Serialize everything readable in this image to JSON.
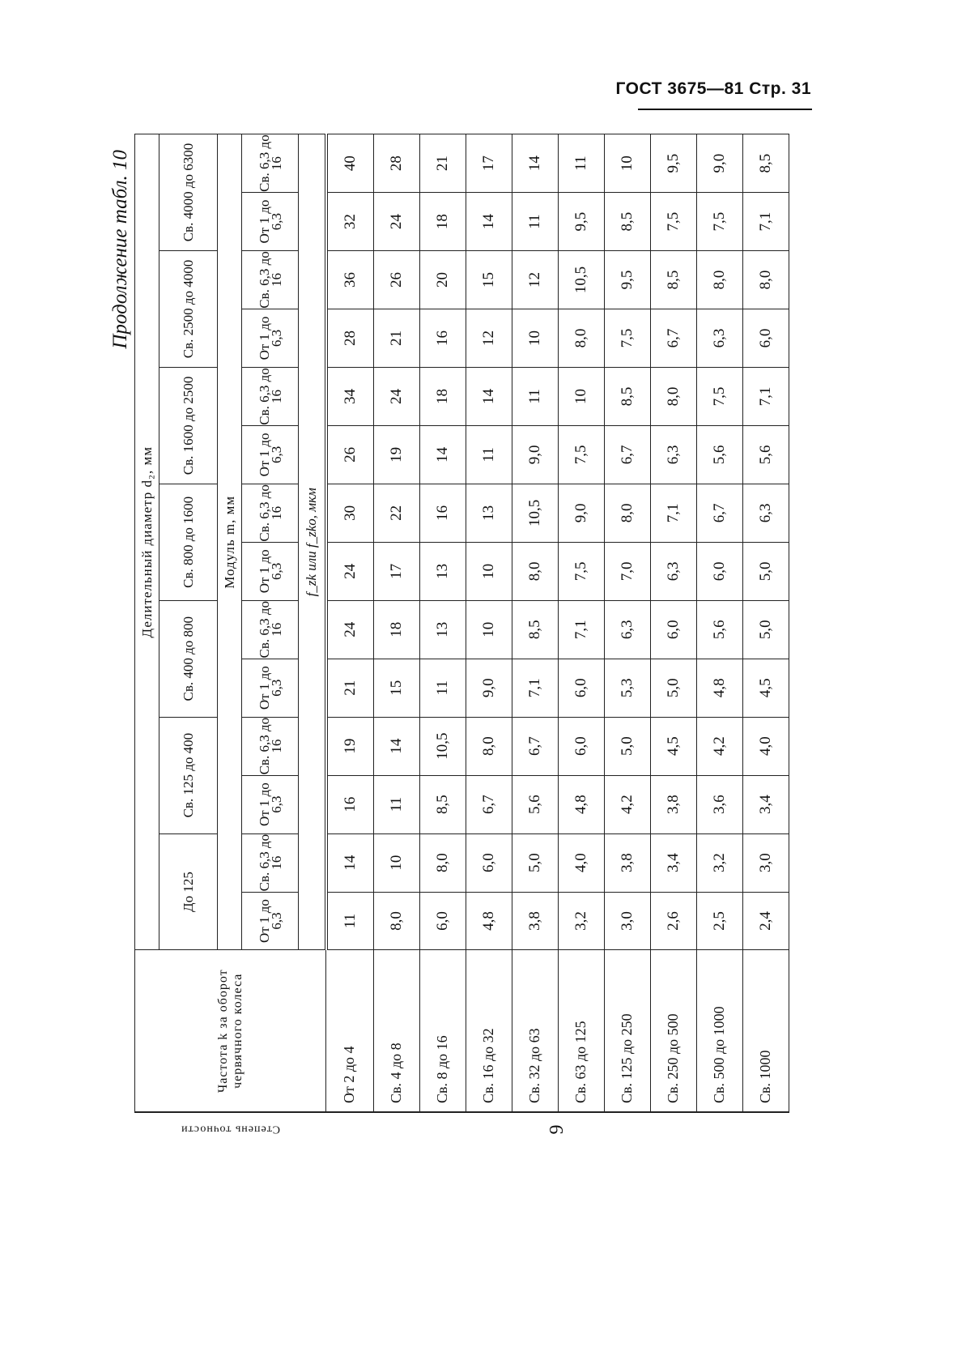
{
  "page_header": {
    "standard": "ГОСТ 3675—81",
    "page": "Стр. 31"
  },
  "caption": "Продолжение табл. 10",
  "table": {
    "col_degree": "Степень точности",
    "col_frequency": "Частота k за оборот червячного колеса",
    "diameter_header": "Делительный диаметр d₂, мм",
    "module_header": "Модуль m, мм",
    "value_header": "f_zk или f_zko, мкм",
    "diameter_groups": [
      "До 125",
      "Св. 125 до 400",
      "Св. 400 до 800",
      "Св. 800 до 1600",
      "Св. 1600 до 2500",
      "Св. 2500 до 4000",
      "Св. 4000 до 6300"
    ],
    "module_ranges": [
      "От 1 до 6,3",
      "Св. 6,3 до 16"
    ],
    "degree": "9",
    "rows": [
      {
        "label": "От 2 до 4",
        "values": [
          "11",
          "14",
          "16",
          "19",
          "21",
          "24",
          "24",
          "30",
          "26",
          "34",
          "28",
          "36",
          "32",
          "40"
        ]
      },
      {
        "label": "Св. 4 до 8",
        "values": [
          "8,0",
          "10",
          "11",
          "14",
          "15",
          "18",
          "17",
          "22",
          "19",
          "24",
          "21",
          "26",
          "24",
          "28"
        ]
      },
      {
        "label": "Св. 8 до 16",
        "values": [
          "6,0",
          "8,0",
          "8,5",
          "10,5",
          "11",
          "13",
          "13",
          "16",
          "14",
          "18",
          "16",
          "20",
          "18",
          "21"
        ]
      },
      {
        "label": "Св. 16 до 32",
        "values": [
          "4,8",
          "6,0",
          "6,7",
          "8,0",
          "9,0",
          "10",
          "10",
          "13",
          "11",
          "14",
          "12",
          "15",
          "14",
          "17"
        ]
      },
      {
        "label": "Св. 32 до 63",
        "values": [
          "3,8",
          "5,0",
          "5,6",
          "6,7",
          "7,1",
          "8,5",
          "8,0",
          "10,5",
          "9,0",
          "11",
          "10",
          "12",
          "11",
          "14"
        ]
      },
      {
        "label": "Св. 63 до 125",
        "values": [
          "3,2",
          "4,0",
          "4,8",
          "6,0",
          "6,0",
          "7,1",
          "7,5",
          "9,0",
          "7,5",
          "10",
          "8,0",
          "10,5",
          "9,5",
          "11"
        ]
      },
      {
        "label": "Св. 125 до 250",
        "values": [
          "3,0",
          "3,8",
          "4,2",
          "5,0",
          "5,3",
          "6,3",
          "7,0",
          "8,0",
          "6,7",
          "8,5",
          "7,5",
          "9,5",
          "8,5",
          "10"
        ]
      },
      {
        "label": "Св. 250 до 500",
        "values": [
          "2,6",
          "3,4",
          "3,8",
          "4,5",
          "5,0",
          "6,0",
          "6,3",
          "7,1",
          "6,3",
          "8,0",
          "6,7",
          "8,5",
          "7,5",
          "9,5"
        ]
      },
      {
        "label": "Св. 500 до 1000",
        "values": [
          "2,5",
          "3,2",
          "3,6",
          "4,2",
          "4,8",
          "5,6",
          "6,0",
          "6,7",
          "5,6",
          "7,5",
          "6,3",
          "8,0",
          "7,5",
          "9,0"
        ]
      },
      {
        "label": "Св. 1000",
        "values": [
          "2,4",
          "3,0",
          "3,4",
          "4,0",
          "4,5",
          "5,0",
          "5,0",
          "6,3",
          "5,6",
          "7,1",
          "6,0",
          "8,0",
          "7,1",
          "8,5"
        ]
      }
    ]
  }
}
